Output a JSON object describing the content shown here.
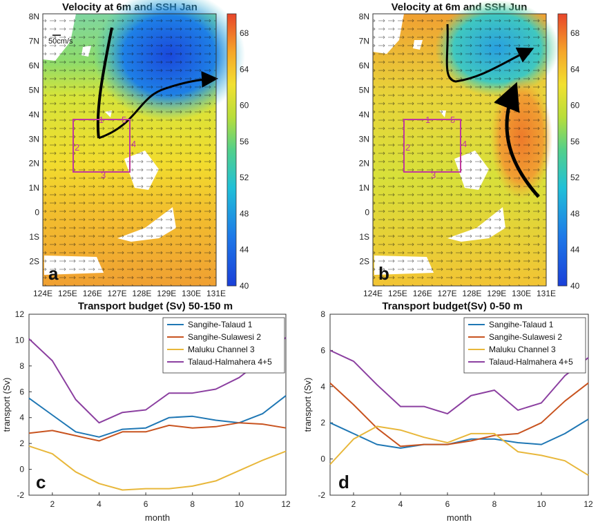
{
  "colors": {
    "sangihe_talaud": "#1f77b4",
    "sangihe_sulawesi": "#c8531f",
    "maluku": "#e8b73a",
    "talaud_halmahera": "#8b3fa0",
    "box": "#c0399d",
    "flow_arrow": "#000000"
  },
  "maps": [
    {
      "letter": "a",
      "title": "Velocity at 6m and SSH Jan",
      "scale_label": "50cm/s",
      "box_labels": [
        "1",
        "2",
        "3",
        "4",
        "5"
      ],
      "lat_ticks": [
        "8N",
        "7N",
        "6N",
        "5N",
        "4N",
        "3N",
        "2N",
        "1N",
        "0",
        "1S",
        "2S"
      ],
      "lon_ticks": [
        "124E",
        "125E",
        "126E",
        "127E",
        "128E",
        "129E",
        "130E",
        "131E"
      ],
      "colorbar_ticks": [
        "68",
        "64",
        "60",
        "56",
        "52",
        "48",
        "44",
        "40"
      ]
    },
    {
      "letter": "b",
      "title": "Velocity at 6m and SSH Jun",
      "scale_label": "",
      "box_labels": [
        "1",
        "2",
        "3",
        "4",
        "5"
      ],
      "lat_ticks": [
        "8N",
        "7N",
        "6N",
        "5N",
        "4N",
        "3N",
        "2N",
        "1N",
        "0",
        "1S",
        "2S"
      ],
      "lon_ticks": [
        "124E",
        "125E",
        "126E",
        "127E",
        "128E",
        "129E",
        "130E",
        "131E"
      ],
      "colorbar_ticks": [
        "68",
        "64",
        "60",
        "56",
        "52",
        "48",
        "44",
        "40"
      ]
    }
  ],
  "chart_data": [
    {
      "type": "line",
      "letter": "c",
      "title": "Transport budget (Sv) 50-150 m",
      "xlabel": "month",
      "ylabel": "transport (Sv)",
      "xlim": [
        1,
        12
      ],
      "ylim": [
        -2,
        12
      ],
      "x_ticks": [
        "2",
        "4",
        "6",
        "8",
        "10",
        "12"
      ],
      "y_ticks": [
        "12",
        "10",
        "8",
        "6",
        "4",
        "2",
        "0",
        "-2"
      ],
      "legend_position": "top-right",
      "x": [
        1,
        2,
        3,
        4,
        5,
        6,
        7,
        8,
        9,
        10,
        11,
        12
      ],
      "series": [
        {
          "name": "Sangihe-Talaud 1",
          "values": [
            5.5,
            4.2,
            2.9,
            2.5,
            3.1,
            3.2,
            4.0,
            4.1,
            3.8,
            3.6,
            4.3,
            5.7
          ]
        },
        {
          "name": "Sangihe-Sulawesi 2",
          "values": [
            2.8,
            3.0,
            2.6,
            2.2,
            2.9,
            2.9,
            3.4,
            3.2,
            3.3,
            3.6,
            3.5,
            3.2
          ]
        },
        {
          "name": "Maluku Channel 3",
          "values": [
            1.8,
            1.2,
            -0.2,
            -1.1,
            -1.6,
            -1.5,
            -1.5,
            -1.3,
            -0.9,
            -0.1,
            0.7,
            1.4
          ]
        },
        {
          "name": "Talaud-Halmahera 4+5",
          "values": [
            10.1,
            8.4,
            5.4,
            3.6,
            4.4,
            4.6,
            5.9,
            5.9,
            6.2,
            7.1,
            8.5,
            10.2
          ]
        }
      ]
    },
    {
      "type": "line",
      "letter": "d",
      "title": "Transport budget(Sv) 0-50 m",
      "xlabel": "month",
      "ylabel": "transport (Sv)",
      "xlim": [
        1,
        12
      ],
      "ylim": [
        -2,
        8
      ],
      "x_ticks": [
        "2",
        "4",
        "6",
        "8",
        "10",
        "12"
      ],
      "y_ticks": [
        "8",
        "6",
        "4",
        "2",
        "0",
        "-2"
      ],
      "legend_position": "top-right",
      "x": [
        1,
        2,
        3,
        4,
        5,
        6,
        7,
        8,
        9,
        10,
        11,
        12
      ],
      "series": [
        {
          "name": "Sangihe-Talaud 1",
          "values": [
            2.0,
            1.4,
            0.8,
            0.6,
            0.8,
            0.8,
            1.1,
            1.1,
            0.9,
            0.8,
            1.4,
            2.2
          ]
        },
        {
          "name": "Sangihe-Sulawesi 2",
          "values": [
            4.2,
            3.0,
            1.7,
            0.7,
            0.8,
            0.8,
            1.0,
            1.3,
            1.4,
            2.0,
            3.2,
            4.2
          ]
        },
        {
          "name": "Maluku Channel 3",
          "values": [
            -0.3,
            1.1,
            1.8,
            1.6,
            1.2,
            0.9,
            1.4,
            1.4,
            0.4,
            0.2,
            -0.1,
            -0.9
          ]
        },
        {
          "name": "Talaud-Halmahera 4+5",
          "values": [
            6.0,
            5.4,
            4.1,
            2.9,
            2.9,
            2.5,
            3.5,
            3.8,
            2.7,
            3.1,
            4.6,
            5.6
          ]
        }
      ]
    }
  ]
}
